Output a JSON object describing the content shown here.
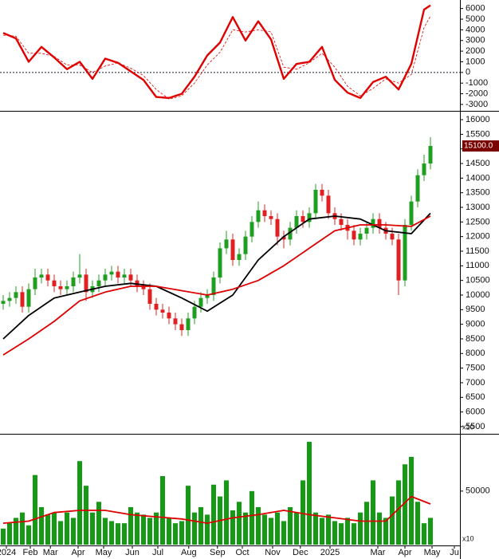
{
  "chart_data": [
    {
      "type": "line",
      "xlim": [
        -0.5,
        71.625
      ],
      "ylim": [
        -3530,
        6800
      ],
      "yticks": [
        -3000,
        -2000,
        -1000,
        0,
        1000,
        2000,
        3000,
        4000,
        5000,
        6000
      ],
      "reference_line": 0,
      "series": [
        {
          "color": "#e00000",
          "style": "solid",
          "x": [
            0,
            2,
            4,
            6,
            8,
            10,
            12,
            14,
            16,
            18,
            20,
            22,
            24,
            26,
            28,
            30,
            32,
            34,
            36,
            38,
            40,
            42,
            44,
            46,
            48,
            50,
            52,
            54,
            56,
            58,
            60,
            62,
            64,
            66,
            67
          ],
          "values": [
            3700,
            3200,
            1000,
            2400,
            1400,
            300,
            1000,
            -600,
            1300,
            900,
            100,
            -700,
            -2300,
            -2400,
            -2000,
            -400,
            1600,
            2800,
            5200,
            3000,
            4800,
            3100,
            -600,
            800,
            1000,
            2400,
            -700,
            -1900,
            -2400,
            -900,
            -400,
            -1600,
            800,
            5900,
            6300
          ]
        },
        {
          "color": "#e00000",
          "style": "dashed",
          "x": [
            0,
            2,
            4,
            6,
            8,
            10,
            12,
            14,
            16,
            18,
            20,
            22,
            24,
            26,
            28,
            30,
            32,
            34,
            36,
            38,
            40,
            42,
            44,
            46,
            48,
            50,
            52,
            54,
            56,
            58,
            60,
            62,
            64,
            66,
            67
          ],
          "values": [
            3500,
            3400,
            1800,
            1800,
            1500,
            700,
            700,
            0,
            600,
            900,
            400,
            -300,
            -1600,
            -2500,
            -2200,
            -1000,
            700,
            1900,
            4000,
            3800,
            4000,
            3800,
            500,
            300,
            900,
            1800,
            500,
            -1300,
            -2200,
            -1500,
            -600,
            -1000,
            -200,
            4200,
            5300
          ]
        }
      ]
    },
    {
      "type": "candlestick",
      "xlim": [
        -0.5,
        71.625
      ],
      "ylim": [
        5280,
        16220
      ],
      "yticks": [
        5500,
        6000,
        6500,
        7000,
        7500,
        8000,
        8500,
        9000,
        9500,
        10000,
        10500,
        11000,
        11500,
        12000,
        12500,
        13000,
        13500,
        14000,
        14500,
        15000,
        15500,
        16000
      ],
      "up_color": "#1f9f1f",
      "down_color": "#e02020",
      "open": [
        9700,
        9800,
        9900,
        10100,
        9600,
        10200,
        10600,
        10700,
        10500,
        10300,
        10200,
        10300,
        10600,
        10700,
        10100,
        10300,
        10500,
        10700,
        10800,
        10600,
        10700,
        10500,
        10300,
        10200,
        9700,
        9500,
        9400,
        9200,
        9000,
        8800,
        9200,
        9600,
        9900,
        10000,
        10600,
        11600,
        11900,
        11200,
        11400,
        12000,
        12500,
        12900,
        12700,
        12600,
        12000,
        11900,
        12300,
        12700,
        12500,
        12800,
        13600,
        13400,
        12800,
        12600,
        12400,
        12200,
        11900,
        12100,
        12300,
        12600,
        12300,
        12100,
        11900,
        10500,
        12400,
        13200,
        14100,
        14500
      ],
      "high": [
        10000,
        10100,
        10300,
        10300,
        10400,
        10900,
        10900,
        10900,
        10700,
        10500,
        10500,
        10800,
        11400,
        10900,
        10500,
        10700,
        10900,
        11000,
        11000,
        10900,
        10900,
        10700,
        10500,
        10400,
        9900,
        9700,
        9600,
        9400,
        9200,
        9400,
        9800,
        10100,
        10200,
        10800,
        11800,
        12200,
        12100,
        11600,
        12200,
        12700,
        13200,
        13100,
        12900,
        12800,
        12200,
        12500,
        12900,
        12900,
        13000,
        13800,
        13800,
        13600,
        13000,
        12800,
        12600,
        12400,
        12300,
        12500,
        12800,
        12800,
        12500,
        12300,
        12100,
        12600,
        13400,
        14300,
        14800,
        15400
      ],
      "low": [
        9500,
        9600,
        9700,
        9400,
        9400,
        10000,
        10400,
        10300,
        10100,
        10000,
        10000,
        10100,
        10400,
        9800,
        9900,
        10100,
        10300,
        10500,
        10400,
        10400,
        10300,
        10100,
        10000,
        9500,
        9300,
        9200,
        9000,
        8800,
        8600,
        8600,
        9000,
        9400,
        9700,
        9800,
        10400,
        11400,
        11000,
        11000,
        11200,
        11800,
        12300,
        12500,
        12400,
        11700,
        11600,
        11700,
        12100,
        12300,
        12300,
        12600,
        13200,
        12600,
        12400,
        12200,
        11900,
        11700,
        11700,
        11900,
        12100,
        12100,
        11900,
        11700,
        10000,
        10300,
        12200,
        13000,
        13900,
        14300
      ],
      "close": [
        9800,
        9900,
        10100,
        9600,
        10200,
        10600,
        10700,
        10500,
        10300,
        10200,
        10300,
        10600,
        10700,
        10100,
        10300,
        10500,
        10700,
        10800,
        10600,
        10700,
        10500,
        10300,
        10200,
        9700,
        9500,
        9400,
        9200,
        9000,
        8800,
        9200,
        9600,
        9900,
        10000,
        10600,
        11600,
        11900,
        11200,
        11400,
        12000,
        12500,
        12900,
        12700,
        12600,
        12000,
        11900,
        12300,
        12700,
        12500,
        12800,
        13600,
        13400,
        12800,
        12600,
        12400,
        12200,
        11900,
        12100,
        12300,
        12600,
        12300,
        12100,
        11900,
        10500,
        12400,
        13200,
        14100,
        14500,
        15100
      ],
      "moving_averages": [
        {
          "color": "#000000",
          "x": [
            0,
            4,
            8,
            12,
            16,
            20,
            24,
            28,
            32,
            36,
            40,
            44,
            48,
            52,
            56,
            60,
            64,
            67
          ],
          "values": [
            8500,
            9300,
            9900,
            10100,
            10300,
            10400,
            10300,
            9900,
            9450,
            10000,
            11200,
            12000,
            12600,
            12700,
            12600,
            12200,
            12100,
            12800
          ]
        },
        {
          "color": "#dd0000",
          "x": [
            0,
            4,
            8,
            12,
            16,
            20,
            24,
            28,
            32,
            36,
            40,
            44,
            48,
            52,
            56,
            60,
            64,
            67
          ],
          "values": [
            7950,
            8500,
            9100,
            9800,
            10100,
            10300,
            10300,
            10150,
            10000,
            10200,
            10500,
            11000,
            11600,
            12200,
            12400,
            12400,
            12350,
            12700
          ]
        }
      ],
      "last_price": 15100,
      "last_price_label": "15100.0",
      "last_price_color": "#7a0000",
      "axis_note": "x10"
    },
    {
      "type": "bar",
      "xlim": [
        -0.5,
        71.625
      ],
      "ylim": [
        0,
        102000
      ],
      "yticks": [
        50000
      ],
      "color": "#159a15",
      "values": [
        15000,
        20000,
        25000,
        30000,
        18000,
        65000,
        35000,
        28000,
        30000,
        22000,
        30000,
        25000,
        78000,
        55000,
        30000,
        40000,
        25000,
        22000,
        20000,
        20000,
        35000,
        30000,
        28000,
        25000,
        30000,
        64000,
        25000,
        20000,
        22000,
        55000,
        30000,
        35000,
        28000,
        56000,
        45000,
        60000,
        32000,
        40000,
        30000,
        50000,
        35000,
        28000,
        25000,
        30000,
        22000,
        35000,
        30000,
        60000,
        96000,
        30000,
        25000,
        28000,
        22000,
        20000,
        25000,
        20000,
        30000,
        40000,
        60000,
        30000,
        25000,
        45000,
        60000,
        75000,
        82000,
        40000,
        20000,
        25000
      ],
      "moving_average": {
        "color": "#dd0000",
        "x": [
          0,
          4,
          8,
          12,
          16,
          20,
          24,
          28,
          32,
          36,
          40,
          44,
          48,
          52,
          56,
          60,
          64,
          67
        ],
        "values": [
          20000,
          22000,
          30000,
          32000,
          32000,
          28000,
          26000,
          24000,
          20000,
          25000,
          28000,
          32000,
          28000,
          25000,
          22000,
          22000,
          45000,
          38000
        ]
      },
      "xticks": [
        {
          "value": 0.5,
          "label": "2024"
        },
        {
          "value": 4.25,
          "label": "Feb"
        },
        {
          "value": 7.4,
          "label": "Mar"
        },
        {
          "value": 11.75,
          "label": "Apr"
        },
        {
          "value": 15.75,
          "label": "May"
        },
        {
          "value": 20.25,
          "label": "Jun"
        },
        {
          "value": 24.25,
          "label": "Jul"
        },
        {
          "value": 29.1,
          "label": "Aug"
        },
        {
          "value": 33.6,
          "label": "Sep"
        },
        {
          "value": 37.5,
          "label": "Oct"
        },
        {
          "value": 42.25,
          "label": "Nov"
        },
        {
          "value": 46.6,
          "label": "Dec"
        },
        {
          "value": 51.25,
          "label": "2025"
        },
        {
          "value": 58.75,
          "label": "Mar"
        },
        {
          "value": 63,
          "label": "Apr"
        },
        {
          "value": 67.25,
          "label": "May"
        },
        {
          "value": 70.75,
          "label": "Ju"
        }
      ],
      "axis_note": "x10"
    }
  ]
}
